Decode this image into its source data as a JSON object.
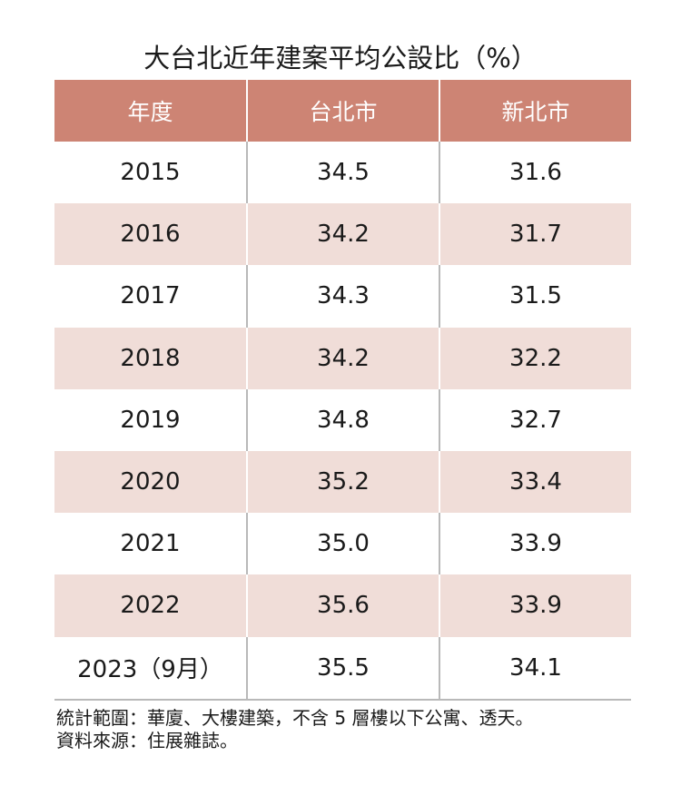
{
  "chart_data": {
    "type": "table",
    "title": "大台北近年建案平均公設比（%）",
    "columns": [
      "年度",
      "台北市",
      "新北市"
    ],
    "rows": [
      [
        "2015",
        "34.5",
        "31.6"
      ],
      [
        "2016",
        "34.2",
        "31.7"
      ],
      [
        "2017",
        "34.3",
        "31.5"
      ],
      [
        "2018",
        "34.2",
        "32.2"
      ],
      [
        "2019",
        "34.8",
        "32.7"
      ],
      [
        "2020",
        "35.2",
        "33.4"
      ],
      [
        "2021",
        "35.0",
        "33.9"
      ],
      [
        "2022",
        "35.6",
        "33.9"
      ],
      [
        "2023（9月）",
        "35.5",
        "34.1"
      ]
    ],
    "header_color": "#cd8474",
    "alt_row_color": "#f0ddd8"
  },
  "notes": [
    "統計範圍：華廈、大樓建築，不含 5 層樓以下公寓、透天。",
    "資料來源：住展雜誌。"
  ]
}
